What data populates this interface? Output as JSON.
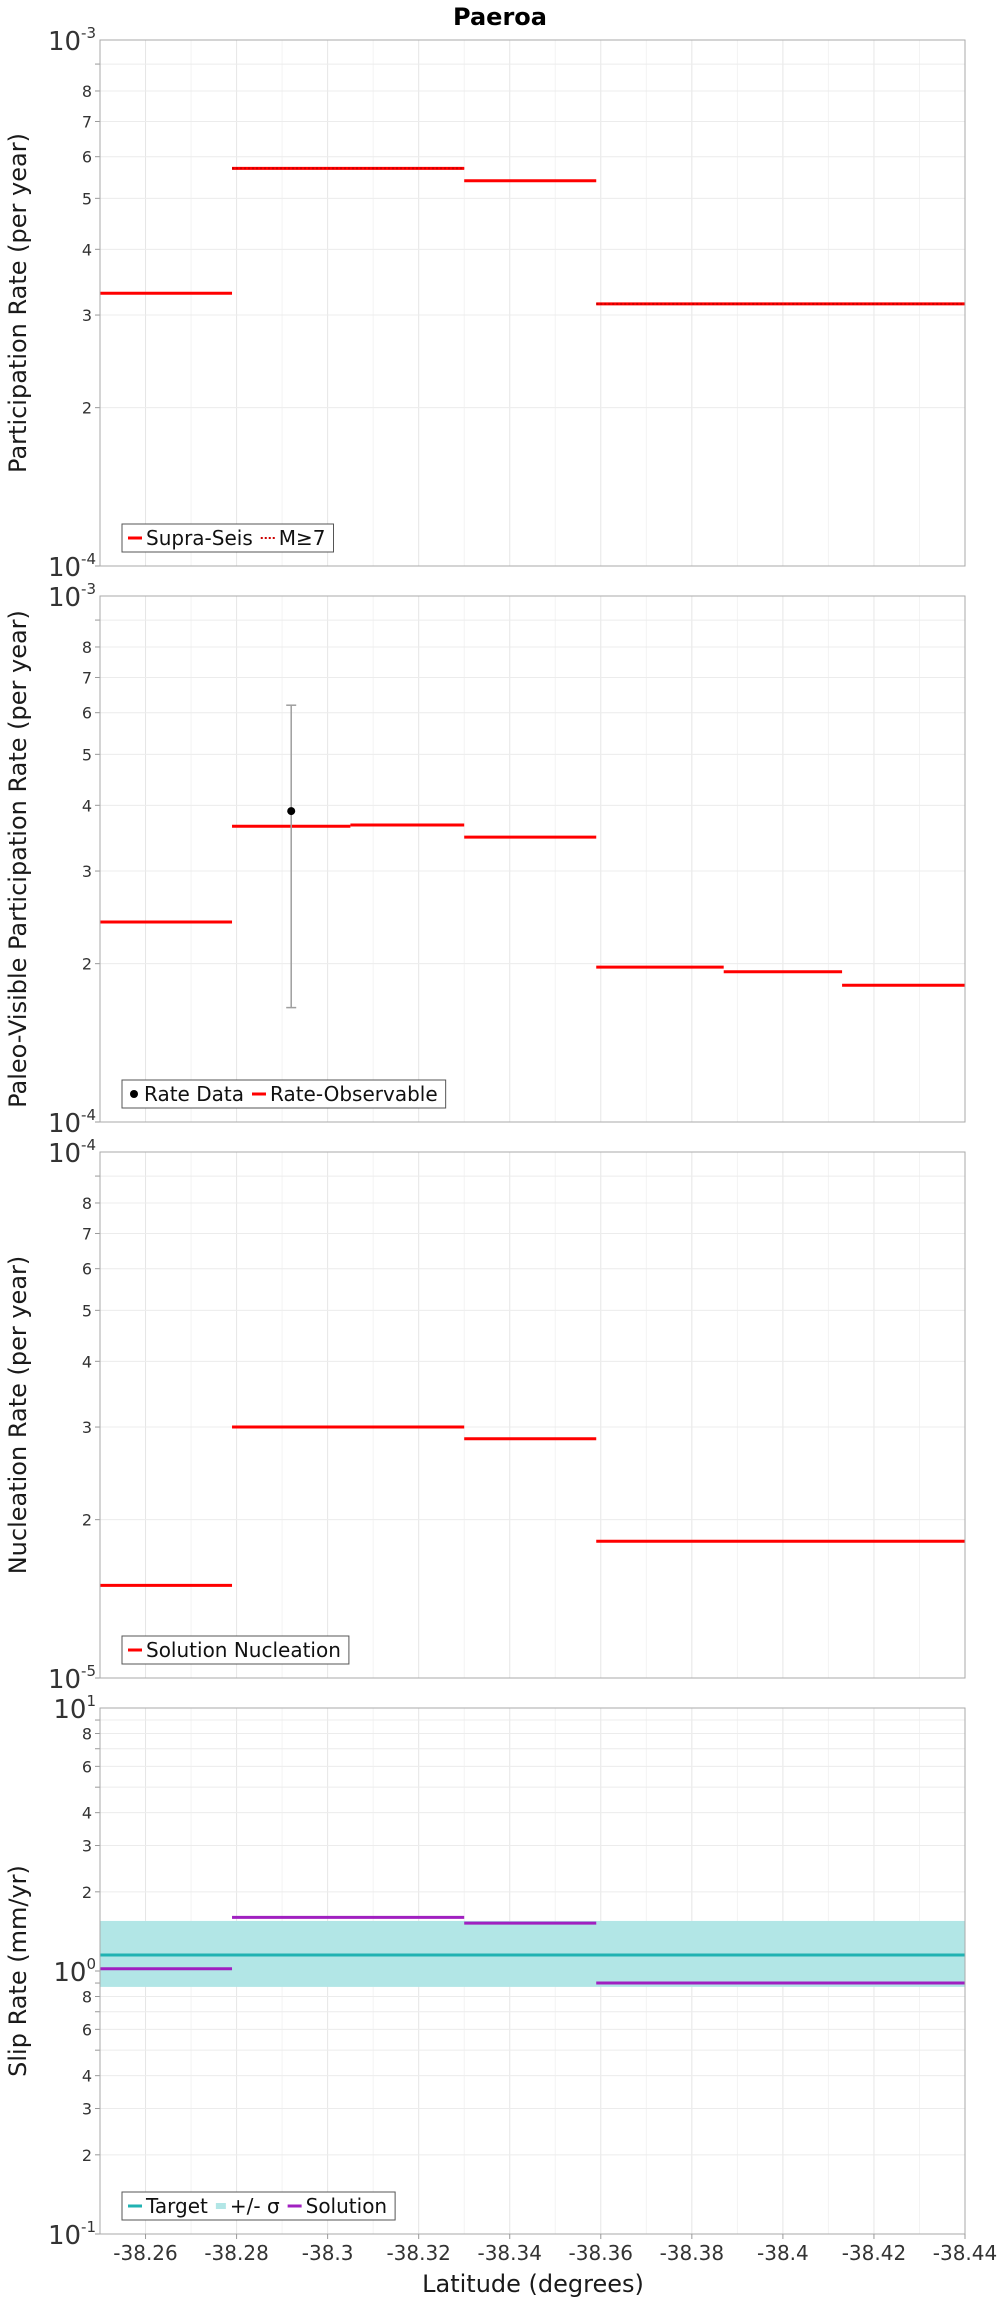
{
  "chart_data": {
    "type": "line",
    "title": "Paeroa",
    "xlabel": "Latitude (degrees)",
    "x_ticks": [
      "-38.26",
      "-38.28",
      "-38.3",
      "-38.32",
      "-38.34",
      "-38.36",
      "-38.38",
      "-38.4",
      "-38.42",
      "-38.44"
    ],
    "xlim": [
      -38.25,
      -38.44
    ],
    "panels": [
      {
        "ylabel": "Participation Rate (per year)",
        "yscale": "log",
        "ylim": [
          0.0001,
          0.001
        ],
        "decade_labels": [
          {
            "base": "10",
            "exp": "-4"
          },
          {
            "base": "10",
            "exp": "-3"
          }
        ],
        "minor_ticks": [
          "2",
          "3",
          "4",
          "5",
          "6",
          "7",
          "8"
        ],
        "legend": [
          "Supra-Seis",
          "M≥7"
        ],
        "series": [
          {
            "name": "Supra-Seis",
            "color": "#ff0000",
            "style": "solid",
            "segments": [
              [
                -38.25,
                -38.279,
                0.00033
              ],
              [
                -38.279,
                -38.33,
                0.00057
              ],
              [
                -38.33,
                -38.359,
                0.00054
              ],
              [
                -38.359,
                -38.44,
                0.000315
              ]
            ]
          },
          {
            "name": "M≥7",
            "color": "#cc0000",
            "style": "dotted",
            "segments": [
              [
                -38.279,
                -38.33,
                0.00057
              ],
              [
                -38.359,
                -38.44,
                0.000315
              ]
            ]
          }
        ]
      },
      {
        "ylabel": "Paleo-Visible Participation Rate (per year)",
        "yscale": "log",
        "ylim": [
          0.0001,
          0.001
        ],
        "decade_labels": [
          {
            "base": "10",
            "exp": "-4"
          },
          {
            "base": "10",
            "exp": "-3"
          }
        ],
        "minor_ticks": [
          "2",
          "3",
          "4",
          "5",
          "6",
          "7",
          "8"
        ],
        "legend": [
          "Rate Data",
          "Rate-Observable"
        ],
        "series": [
          {
            "name": "Rate-Observable",
            "color": "#ff0000",
            "style": "solid",
            "segments": [
              [
                -38.25,
                -38.279,
                0.00024
              ],
              [
                -38.279,
                -38.305,
                0.000365
              ],
              [
                -38.305,
                -38.33,
                0.000367
              ],
              [
                -38.33,
                -38.359,
                0.000348
              ],
              [
                -38.359,
                -38.387,
                0.000197
              ],
              [
                -38.387,
                -38.413,
                0.000193
              ],
              [
                -38.413,
                -38.44,
                0.000182
              ]
            ]
          }
        ],
        "points": [
          {
            "name": "Rate Data",
            "x": -38.292,
            "y": 0.00039,
            "ylow": 0.000165,
            "yhigh": 0.00062,
            "color": "#000000"
          }
        ]
      },
      {
        "ylabel": "Nucleation Rate (per year)",
        "yscale": "log",
        "ylim": [
          1e-05,
          0.0001
        ],
        "decade_labels": [
          {
            "base": "10",
            "exp": "-5"
          },
          {
            "base": "10",
            "exp": "-4"
          }
        ],
        "minor_ticks": [
          "2",
          "3",
          "4",
          "5",
          "6",
          "7",
          "8"
        ],
        "legend": [
          "Solution Nucleation"
        ],
        "series": [
          {
            "name": "Solution Nucleation",
            "color": "#ff0000",
            "style": "solid",
            "segments": [
              [
                -38.25,
                -38.279,
                1.5e-05
              ],
              [
                -38.279,
                -38.33,
                3e-05
              ],
              [
                -38.33,
                -38.359,
                2.85e-05
              ],
              [
                -38.359,
                -38.44,
                1.82e-05
              ]
            ]
          }
        ]
      },
      {
        "ylabel": "Slip Rate (mm/yr)",
        "yscale": "log",
        "ylim": [
          0.1,
          10
        ],
        "decade_labels": [
          {
            "base": "10",
            "exp": "-1"
          },
          {
            "base": "10",
            "exp": "0"
          },
          {
            "base": "10",
            "exp": "1"
          }
        ],
        "minor_ticks": [
          "2",
          "3",
          "4",
          "6",
          "8"
        ],
        "legend": [
          "Target",
          "+/- σ",
          "Solution"
        ],
        "band": {
          "name": "+/- σ",
          "color": "#b2e6e6",
          "ylow": 0.87,
          "yhigh": 1.55
        },
        "series": [
          {
            "name": "Target",
            "color": "#20b2b2",
            "style": "solid",
            "segments": [
              [
                -38.25,
                -38.44,
                1.15
              ]
            ]
          },
          {
            "name": "Solution",
            "color": "#a020c0",
            "style": "solid",
            "segments": [
              [
                -38.25,
                -38.279,
                1.02
              ],
              [
                -38.279,
                -38.33,
                1.6
              ],
              [
                -38.33,
                -38.359,
                1.52
              ],
              [
                -38.359,
                -38.44,
                0.9
              ]
            ]
          }
        ]
      }
    ]
  }
}
